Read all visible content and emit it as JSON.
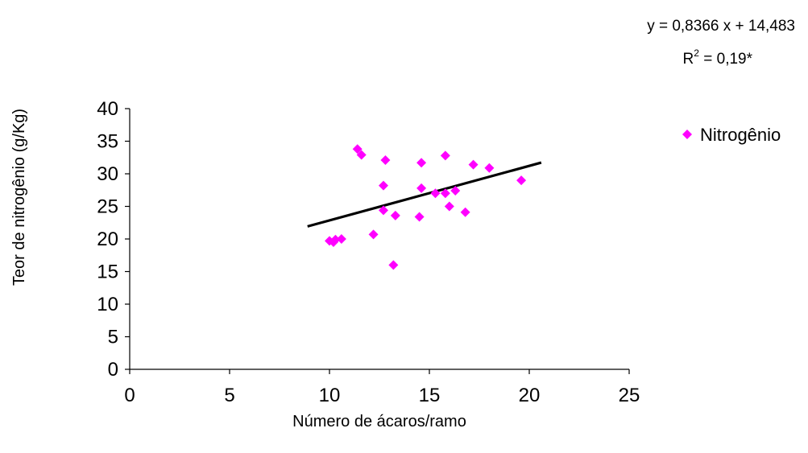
{
  "chart_data": {
    "type": "scatter",
    "xlabel": "Número de ácaros/ramo",
    "ylabel": "Teor de nitrogênio (g/Kg)",
    "xlim": [
      0,
      25
    ],
    "ylim": [
      0,
      40
    ],
    "xticks": [
      0,
      5,
      10,
      15,
      20,
      25
    ],
    "yticks": [
      0,
      5,
      10,
      15,
      20,
      25,
      30,
      35,
      40
    ],
    "grid": false,
    "legend_position": "right",
    "series": [
      {
        "name": "Nitrogênio",
        "color": "#FF00FF",
        "marker": "diamond",
        "points": [
          {
            "x": 10.0,
            "y": 19.7
          },
          {
            "x": 10.2,
            "y": 19.5
          },
          {
            "x": 10.3,
            "y": 19.9
          },
          {
            "x": 10.6,
            "y": 20.0
          },
          {
            "x": 11.4,
            "y": 33.8
          },
          {
            "x": 11.6,
            "y": 32.9
          },
          {
            "x": 12.2,
            "y": 20.7
          },
          {
            "x": 12.7,
            "y": 24.4
          },
          {
            "x": 12.7,
            "y": 28.2
          },
          {
            "x": 12.8,
            "y": 32.1
          },
          {
            "x": 13.2,
            "y": 16.0
          },
          {
            "x": 13.3,
            "y": 23.6
          },
          {
            "x": 14.5,
            "y": 23.4
          },
          {
            "x": 14.6,
            "y": 31.7
          },
          {
            "x": 14.6,
            "y": 27.8
          },
          {
            "x": 15.3,
            "y": 27.0
          },
          {
            "x": 15.8,
            "y": 32.8
          },
          {
            "x": 15.8,
            "y": 27.0
          },
          {
            "x": 16.0,
            "y": 25.0
          },
          {
            "x": 16.3,
            "y": 27.4
          },
          {
            "x": 16.8,
            "y": 24.1
          },
          {
            "x": 17.2,
            "y": 31.4
          },
          {
            "x": 18.0,
            "y": 30.9
          },
          {
            "x": 19.6,
            "y": 29.0
          }
        ]
      }
    ],
    "trendline": {
      "color": "#000000",
      "slope": 0.8366,
      "intercept": 14.483,
      "x_range": [
        8.9,
        20.6
      ]
    },
    "annotations": {
      "equation": "y = 0,8366 x + 14,483",
      "r2_prefix": "R",
      "r2_sup": "2",
      "r2_value": " = 0,19*"
    }
  }
}
